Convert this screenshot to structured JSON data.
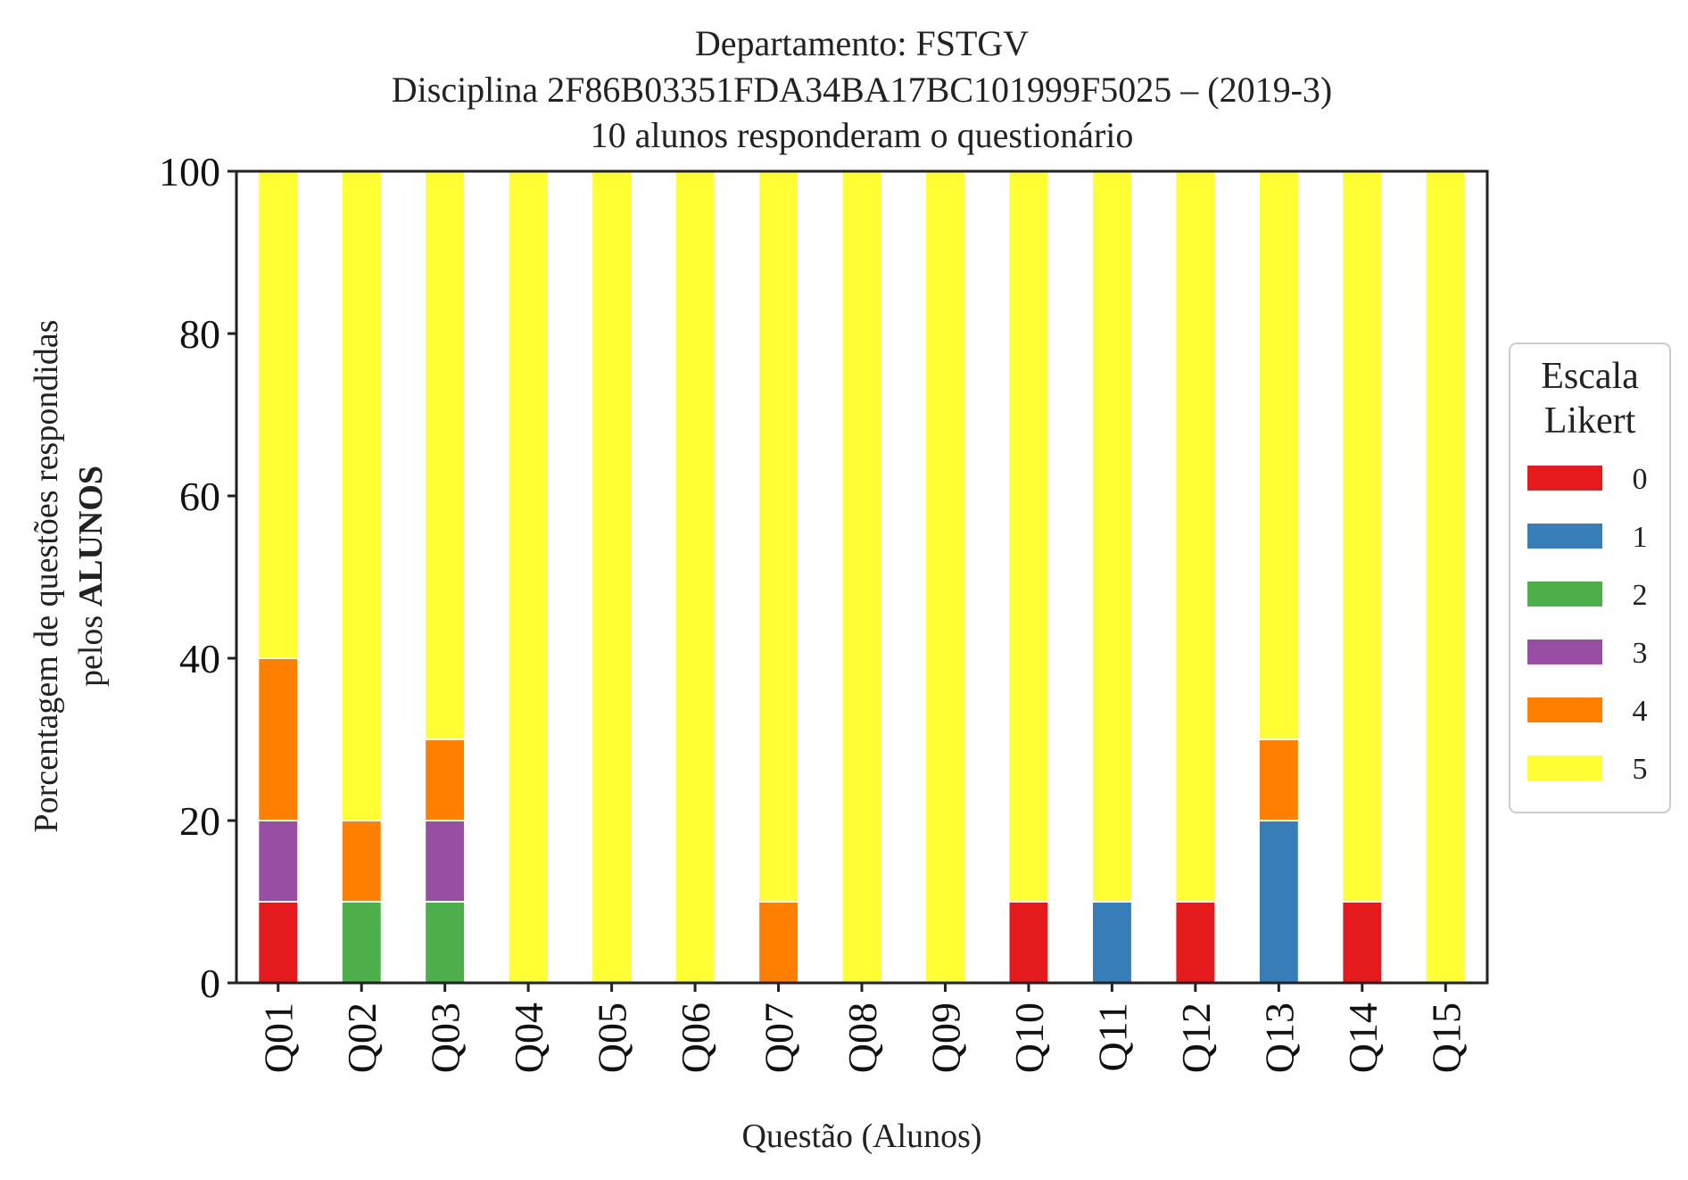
{
  "chart_data": {
    "type": "bar",
    "stacked": true,
    "title_lines": [
      "Departamento: FSTGV",
      "Disciplina 2F86B03351FDA34BA17BC101999F5025 – (2019-3)",
      "10 alunos responderam o questionário"
    ],
    "xlabel": "Questão (Alunos)",
    "ylabel_line1": "Porcentagem de questões respondidas",
    "ylabel_line2_prefix": "pelos ",
    "ylabel_line2_bold": "ALUNOS",
    "ylim": [
      0,
      100
    ],
    "yticks": [
      "0",
      "20",
      "40",
      "60",
      "80",
      "100"
    ],
    "grid": false,
    "legend_position": "right",
    "legend_title_lines": [
      "Escala",
      "Likert"
    ],
    "categories": [
      "Q01",
      "Q02",
      "Q03",
      "Q04",
      "Q05",
      "Q06",
      "Q07",
      "Q08",
      "Q09",
      "Q10",
      "Q11",
      "Q12",
      "Q13",
      "Q14",
      "Q15"
    ],
    "series": [
      {
        "name": "0",
        "color": "#e41a1c",
        "values": [
          10,
          0,
          0,
          0,
          0,
          0,
          0,
          0,
          0,
          10,
          0,
          10,
          0,
          10,
          0
        ]
      },
      {
        "name": "1",
        "color": "#377eb8",
        "values": [
          0,
          0,
          0,
          0,
          0,
          0,
          0,
          0,
          0,
          0,
          10,
          0,
          20,
          0,
          0
        ]
      },
      {
        "name": "2",
        "color": "#4daf4a",
        "values": [
          0,
          10,
          10,
          0,
          0,
          0,
          0,
          0,
          0,
          0,
          0,
          0,
          0,
          0,
          0
        ]
      },
      {
        "name": "3",
        "color": "#984ea3",
        "values": [
          10,
          0,
          10,
          0,
          0,
          0,
          0,
          0,
          0,
          0,
          0,
          0,
          0,
          0,
          0
        ]
      },
      {
        "name": "4",
        "color": "#ff7f00",
        "values": [
          20,
          10,
          10,
          0,
          0,
          0,
          10,
          0,
          0,
          0,
          0,
          0,
          10,
          0,
          0
        ]
      },
      {
        "name": "5",
        "color": "#ffff33",
        "values": [
          60,
          80,
          70,
          100,
          100,
          100,
          90,
          100,
          100,
          90,
          90,
          90,
          70,
          90,
          100
        ]
      }
    ]
  }
}
